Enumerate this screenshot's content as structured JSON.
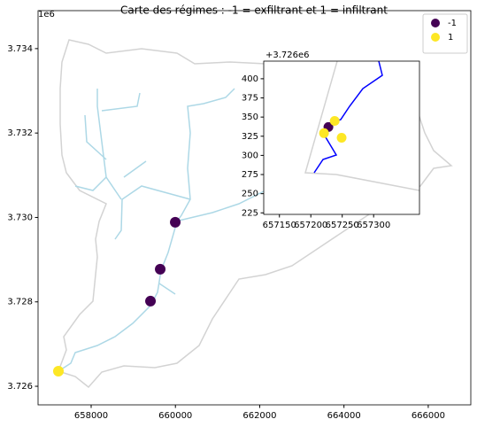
{
  "chart_data": [
    {
      "type": "scatter",
      "title": "Carte des régimes : -1 = exfiltrant et 1 = infiltrant",
      "offset_label": "1e6",
      "xlim": [
        656740,
        667010
      ],
      "ylim": [
        3725560,
        3734900
      ],
      "xticks": [
        658000,
        660000,
        662000,
        664000,
        666000
      ],
      "yticks": [
        {
          "value": 3726000,
          "label": "3.726"
        },
        {
          "value": 3728000,
          "label": "3.728"
        },
        {
          "value": 3730000,
          "label": "3.730"
        },
        {
          "value": 3732000,
          "label": "3.732"
        },
        {
          "value": 3734000,
          "label": "3.734"
        }
      ],
      "legend": "upper right",
      "series": [
        {
          "name": "-1",
          "color": "#440154",
          "x": [
            659408,
            659639,
            659996
          ],
          "y": [
            3728017,
            3728773,
            3729887
          ]
        },
        {
          "name": "1",
          "color": "#fde725",
          "x": [
            657223
          ],
          "y": [
            3726357
          ]
        }
      ]
    },
    {
      "type": "scatter",
      "offset_label": "+3.726e6",
      "xlim": [
        657125,
        657373
      ],
      "ylim": [
        223,
        423
      ],
      "xticks": [
        657150,
        657200,
        657250,
        657300
      ],
      "yticks": [
        225,
        250,
        275,
        300,
        325,
        350,
        375,
        400
      ],
      "series": [
        {
          "name": "-1",
          "color": "#440154",
          "x": [
            657228
          ],
          "y": [
            337
          ]
        },
        {
          "name": "1",
          "color": "#fde725",
          "x": [
            657221,
            657238,
            657249
          ],
          "y": [
            329,
            345,
            323
          ]
        }
      ]
    }
  ]
}
